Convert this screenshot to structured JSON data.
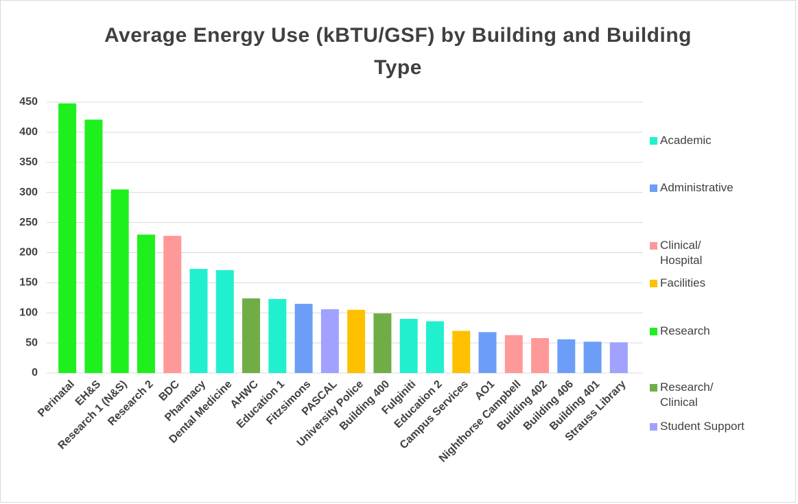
{
  "chart_data": {
    "type": "bar",
    "title": "Average Energy Use (kBTU/GSF) by Building and Building Type",
    "categories": [
      "Perinatal",
      "EH&S",
      "Research 1 (N&S)",
      "Research 2",
      "BDC",
      "Pharmacy",
      "Dental Medicine",
      "AHWC",
      "Education 1",
      "Fitzsimons",
      "PASCAL",
      "University Police",
      "Building 400",
      "Fulginiti",
      "Education 2",
      "Campus Services",
      "AO1",
      "Nighthorse Campbell",
      "Building 402",
      "Building 406",
      "Building 401",
      "Strauss Library"
    ],
    "series": [
      {
        "name": "Academic",
        "color": "#21f0cf",
        "values": [
          null,
          null,
          null,
          null,
          null,
          173,
          171,
          null,
          123,
          null,
          null,
          null,
          null,
          90,
          86,
          null,
          null,
          null,
          null,
          null,
          null,
          null
        ]
      },
      {
        "name": "Administrative",
        "color": "#6d9ef7",
        "values": [
          null,
          null,
          null,
          null,
          null,
          null,
          null,
          null,
          null,
          115,
          null,
          null,
          null,
          null,
          null,
          null,
          68,
          null,
          null,
          56,
          52,
          null
        ]
      },
      {
        "name": "Clinical/\nHospital",
        "color": "#ff9999",
        "values": [
          null,
          null,
          null,
          null,
          228,
          null,
          null,
          null,
          null,
          null,
          null,
          null,
          null,
          null,
          null,
          null,
          null,
          63,
          58,
          null,
          null,
          null
        ]
      },
      {
        "name": "Facilities",
        "color": "#ffc000",
        "values": [
          null,
          null,
          null,
          null,
          null,
          null,
          null,
          null,
          null,
          null,
          null,
          105,
          null,
          null,
          null,
          70,
          null,
          null,
          null,
          null,
          null,
          null
        ]
      },
      {
        "name": "Research",
        "color": "#1ef01e",
        "values": [
          448,
          421,
          305,
          230,
          null,
          null,
          null,
          null,
          null,
          null,
          null,
          null,
          null,
          null,
          null,
          null,
          null,
          null,
          null,
          null,
          null,
          null
        ]
      },
      {
        "name": "Research/\nClinical",
        "color": "#70ad47",
        "values": [
          null,
          null,
          null,
          null,
          null,
          null,
          null,
          124,
          null,
          null,
          null,
          null,
          99,
          null,
          null,
          null,
          null,
          null,
          null,
          null,
          null,
          null
        ]
      },
      {
        "name": "Student Support",
        "color": "#a1a1ff",
        "values": [
          null,
          null,
          null,
          null,
          null,
          null,
          null,
          null,
          null,
          null,
          106,
          null,
          null,
          null,
          null,
          null,
          null,
          null,
          null,
          null,
          null,
          51
        ]
      }
    ],
    "ylim": [
      0,
      450
    ],
    "yticks": [
      0,
      50,
      100,
      150,
      200,
      250,
      300,
      350,
      400,
      450
    ],
    "grid": true
  }
}
